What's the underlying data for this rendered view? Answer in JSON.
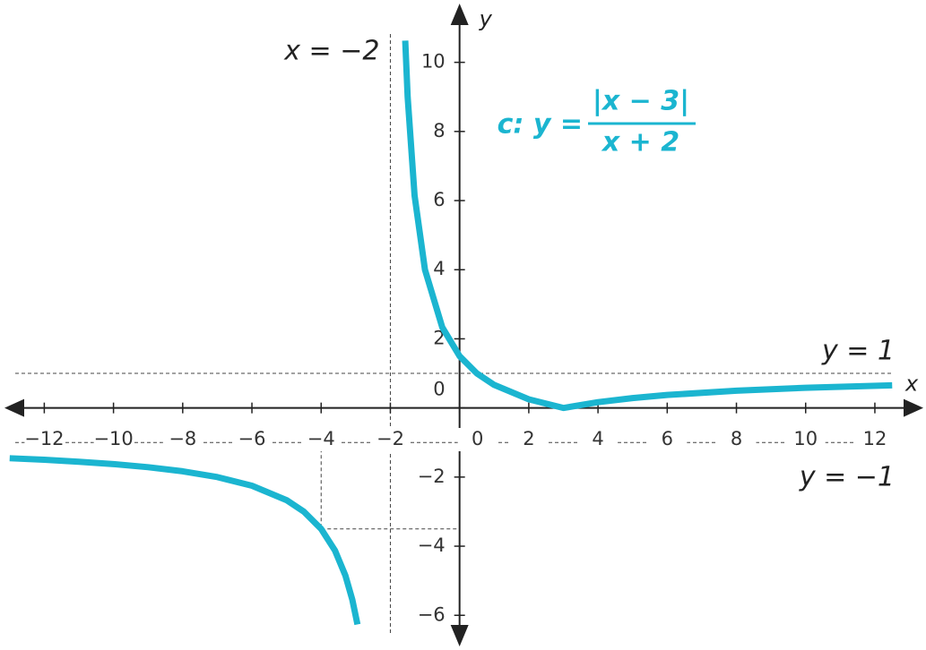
{
  "chart_data": {
    "type": "line",
    "x_label": "x",
    "y_label": "y",
    "equation": {
      "lhs": "c: y =",
      "numerator": "|x − 3|",
      "denominator": "x + 2"
    },
    "xlim": [
      -13.15,
      13.4
    ],
    "ylim": [
      -6.9,
      11.7
    ],
    "xticks": [
      {
        "value": -12,
        "label": "−12"
      },
      {
        "value": -10,
        "label": "−10"
      },
      {
        "value": -8,
        "label": "−8"
      },
      {
        "value": -6,
        "label": "−6"
      },
      {
        "value": -4,
        "label": "−4"
      },
      {
        "value": -2,
        "label": "−2"
      },
      0,
      2,
      4,
      6,
      8,
      10,
      12
    ],
    "yticks": [
      {
        "value": -6,
        "label": "−6"
      },
      {
        "value": -4,
        "label": "−4"
      },
      {
        "value": -2,
        "label": "−2"
      },
      0,
      2,
      4,
      6,
      8,
      10
    ],
    "asymptotes": [
      {
        "label": "x = −2",
        "x": -2
      },
      {
        "label": "y = 1",
        "y": 1
      },
      {
        "label": "y = −1",
        "y": -1
      }
    ],
    "point_guide": {
      "x": -4,
      "y": -3.5
    },
    "series": [
      {
        "color": "#1bb5d0",
        "x": [
          -13,
          -12,
          -11,
          -10,
          -9,
          -8,
          -7,
          -6,
          -5,
          -4.5,
          -4,
          -3.6,
          -3.3,
          -3.1,
          -2.95,
          -2,
          -1.57,
          -1.5,
          -1.3,
          -1,
          -0.5,
          0,
          0.5,
          1,
          2,
          3,
          4,
          5,
          6,
          8,
          10,
          12.5
        ],
        "values": [
          -1.455,
          -1.5,
          -1.556,
          -1.625,
          -1.714,
          -1.833,
          -2,
          -2.25,
          -2.667,
          -3,
          -3.5,
          -4.125,
          -4.846,
          -5.545,
          -6.263,
          null,
          10.628,
          9,
          6.143,
          4,
          2.333,
          1.5,
          1,
          0.667,
          0.25,
          0,
          0.167,
          0.286,
          0.375,
          0.5,
          0.583,
          0.655
        ]
      }
    ]
  }
}
